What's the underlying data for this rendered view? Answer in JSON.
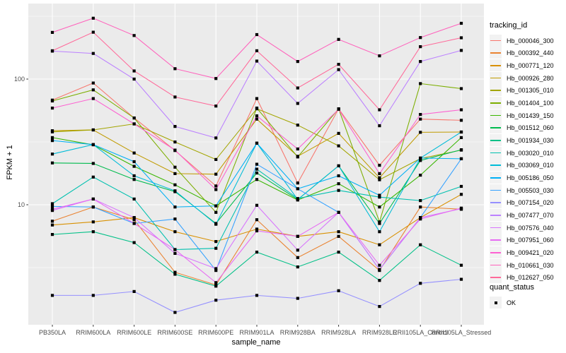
{
  "figure": {
    "background": "#FFFFFF",
    "panel_fill": "#EBEBEB",
    "grid_color": "#FFFFFF",
    "axis_text_color": "#4D4D4D",
    "tick_color": "#333333",
    "point_color": "#000000",
    "legend_key_fill": "#F2F2F2"
  },
  "legend": {
    "tracking_title": "tracking_id",
    "quant_title": "quant_status",
    "quant_items": [
      "OK"
    ]
  },
  "chart_data": {
    "type": "line",
    "title": "",
    "xlabel": "sample_name",
    "ylabel": "FPKM + 1",
    "y_scale": "log10",
    "grid": true,
    "legend_position": "right",
    "y_major_breaks": [
      100,
      10
    ],
    "y_tick_labels": [
      "100",
      "10"
    ],
    "y_minor_breaks": [
      316.23,
      31.62,
      3.16
    ],
    "ylim": [
      1.11,
      374
    ],
    "categories": [
      "PB350LA",
      "RRIM600LA",
      "RRIM600LE",
      "RRIM600SE",
      "RRIM600PE",
      "RRIM901LA",
      "RRIM928BA",
      "RRIM928LA",
      "RRIM928LE",
      "RRII105LA_Control",
      "RRII105LA_Stressed"
    ],
    "series": [
      {
        "name": "Hb_000046_300",
        "color": "#F8766D",
        "values": [
          68,
          93,
          49,
          27,
          14.1,
          70,
          14.9,
          58,
          20.6,
          48,
          47
        ]
      },
      {
        "name": "Hb_000392_440",
        "color": "#EA8331",
        "values": [
          7.4,
          9.6,
          7.6,
          2.9,
          2.3,
          7.6,
          3.8,
          5.6,
          3.0,
          9.6,
          9.2
        ]
      },
      {
        "name": "Hb_000771_120",
        "color": "#D89000",
        "values": [
          6.9,
          7.3,
          7.9,
          6.1,
          5.1,
          6.4,
          5.6,
          6.1,
          4.8,
          7.9,
          12.1
        ]
      },
      {
        "name": "Hb_000926_280",
        "color": "#C09B00",
        "values": [
          38.8,
          39.4,
          25.8,
          17.7,
          17.5,
          48,
          24.3,
          37,
          16.4,
          37.7,
          37.9
        ]
      },
      {
        "name": "Hb_001305_010",
        "color": "#A3A500",
        "values": [
          38,
          39.4,
          44,
          31.6,
          22.9,
          58,
          43,
          29.4,
          15.8,
          23.3,
          27.2
        ]
      },
      {
        "name": "Hb_001404_100",
        "color": "#7CAE00",
        "values": [
          67,
          82,
          49,
          19.9,
          8.7,
          58.8,
          24,
          58,
          7.3,
          92,
          84
        ]
      },
      {
        "name": "Hb_001439_150",
        "color": "#39B600",
        "values": [
          34.2,
          30,
          20.2,
          14.4,
          9.8,
          15.9,
          10.9,
          14.7,
          9.6,
          17.2,
          34.2
        ]
      },
      {
        "name": "Hb_001512_060",
        "color": "#00BB4E",
        "values": [
          21.5,
          21.3,
          15.9,
          12.7,
          7.1,
          17.9,
          11,
          20.4,
          7.1,
          22.5,
          27.4
        ]
      },
      {
        "name": "Hb_001934_030",
        "color": "#00C087",
        "values": [
          5.8,
          6.1,
          5.0,
          2.8,
          2.25,
          4.2,
          3.2,
          4.2,
          2.5,
          4.8,
          3.3
        ]
      },
      {
        "name": "Hb_003020_010",
        "color": "#00C0AF",
        "values": [
          10.2,
          16.6,
          11.1,
          4.4,
          4.5,
          19.2,
          11.2,
          13,
          11.5,
          10.8,
          14
        ]
      },
      {
        "name": "Hb_003069_010",
        "color": "#00BCD8",
        "values": [
          25.3,
          30.1,
          17,
          12.9,
          7.0,
          30.9,
          11,
          20.4,
          6.1,
          23.5,
          37.9
        ]
      },
      {
        "name": "Hb_005186_050",
        "color": "#00B0F6",
        "values": [
          32.4,
          30.1,
          22,
          9.6,
          9.8,
          30.9,
          13.4,
          17,
          11.9,
          23.5,
          23.2
        ]
      },
      {
        "name": "Hb_005503_030",
        "color": "#35A2FF",
        "values": [
          9.7,
          9.6,
          7.1,
          7.7,
          3.0,
          21,
          13.4,
          8.7,
          3.05,
          7.9,
          23.2
        ]
      },
      {
        "name": "Hb_007154_020",
        "color": "#9590FF",
        "values": [
          1.9,
          1.9,
          2.04,
          1.39,
          1.74,
          1.9,
          1.8,
          2.07,
          1.55,
          2.37,
          2.55
        ]
      },
      {
        "name": "Hb_007477_070",
        "color": "#BC81FF",
        "values": [
          167,
          160,
          100,
          42,
          34,
          139,
          64,
          119,
          42.5,
          138,
          169
        ]
      },
      {
        "name": "Hb_007576_040",
        "color": "#D874FD",
        "values": [
          9.0,
          11.1,
          7.9,
          4.1,
          3.1,
          9.9,
          4.35,
          8.7,
          3.05,
          7.9,
          9.3
        ]
      },
      {
        "name": "Hb_007951_060",
        "color": "#E76BF3",
        "values": [
          9.2,
          11.1,
          7.1,
          4.4,
          2.4,
          6.2,
          5.6,
          8.7,
          3.3,
          7.7,
          9.4
        ]
      },
      {
        "name": "Hb_009421_020",
        "color": "#FD61D1",
        "values": [
          58.8,
          70,
          44,
          27.2,
          13.2,
          51,
          27.8,
          57.5,
          17.7,
          52.3,
          57
        ]
      },
      {
        "name": "Hb_010661_030",
        "color": "#FF62BC",
        "values": [
          235,
          305,
          222,
          121,
          101,
          226,
          138,
          207,
          153,
          214,
          278
        ]
      },
      {
        "name": "Hb_012627_050",
        "color": "#FF6A9A",
        "values": [
          168,
          236,
          116,
          72,
          61,
          168,
          85,
          131,
          57,
          181,
          213
        ]
      }
    ]
  }
}
